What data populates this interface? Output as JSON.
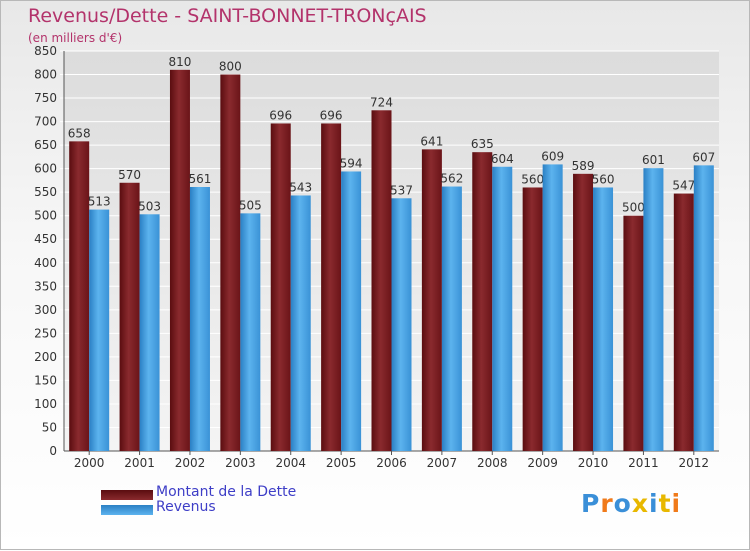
{
  "title": "Revenus/Dette - SAINT-BONNET-TRONçAIS",
  "subtitle": "(en milliers d'€)",
  "legend": {
    "debt_label": "Montant de la Dette",
    "revenue_label": "Revenus"
  },
  "logo_text": "Proxiti",
  "colors": {
    "debt": "#7a1a1e",
    "revenue": "#3f9ee0",
    "title": "#b3336b",
    "legend_text": "#3e3ec7"
  },
  "chart_data": {
    "type": "bar",
    "categories": [
      "2000",
      "2001",
      "2002",
      "2003",
      "2004",
      "2005",
      "2006",
      "2007",
      "2008",
      "2009",
      "2010",
      "2011",
      "2012"
    ],
    "series": [
      {
        "name": "Montant de la Dette",
        "values": [
          658,
          570,
          810,
          800,
          696,
          696,
          724,
          641,
          635,
          560,
          589,
          500,
          547
        ]
      },
      {
        "name": "Revenus",
        "values": [
          513,
          503,
          561,
          505,
          543,
          594,
          537,
          562,
          604,
          609,
          560,
          601,
          607
        ]
      }
    ],
    "ylim": [
      0,
      850
    ],
    "yticks": [
      0,
      50,
      100,
      150,
      200,
      250,
      300,
      350,
      400,
      450,
      500,
      550,
      600,
      650,
      700,
      750,
      800,
      850
    ],
    "grid": true,
    "legend_position": "bottom-left"
  }
}
